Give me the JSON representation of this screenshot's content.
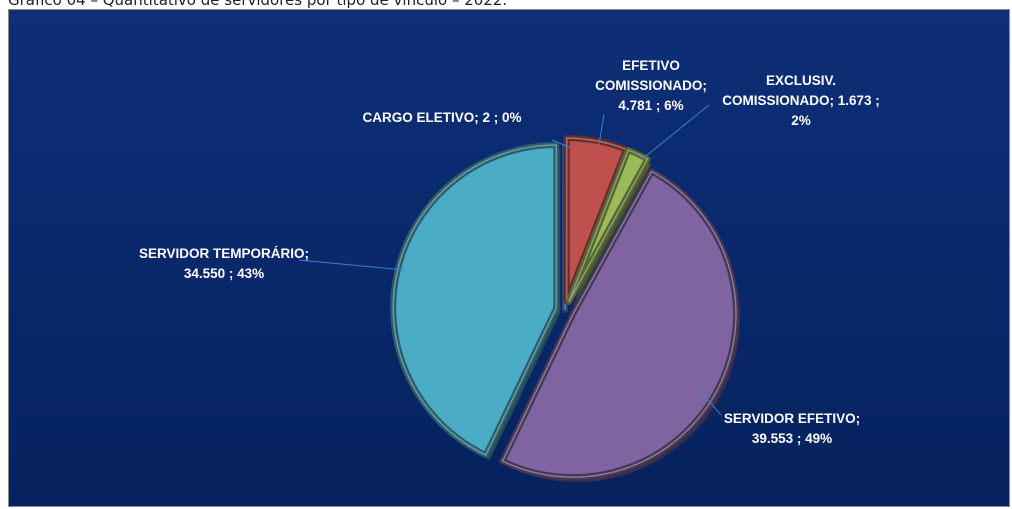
{
  "caption": "Gráfico 04 – Quantitativo de servidores por tipo de vínculo – 2022.",
  "chart_data": {
    "type": "pie",
    "title": "",
    "slices": [
      {
        "name": "CARGO ELETIVO",
        "value": 2,
        "value_label": "2",
        "percent_label": "0%",
        "color": "#4f81bd"
      },
      {
        "name": "EFETIVO COMISSIONADO",
        "value": 4781,
        "value_label": "4.781",
        "percent_label": "6%",
        "color": "#c0504d"
      },
      {
        "name": "EXCLUSIV. COMISSIONADO",
        "value": 1673,
        "value_label": "1.673",
        "percent_label": "2%",
        "color": "#9bbb59"
      },
      {
        "name": "SERVIDOR EFETIVO",
        "value": 39553,
        "value_label": "39.553",
        "percent_label": "49%",
        "color": "#8064a2"
      },
      {
        "name": "SERVIDOR TEMPORÁRIO",
        "value": 34550,
        "value_label": "34.550",
        "percent_label": "43%",
        "color": "#4bacc6"
      }
    ],
    "data_labels": [
      {
        "lines": [
          "CARGO ELETIVO;  2 ; 0%"
        ]
      },
      {
        "lines": [
          "EFETIVO",
          "COMISSIONADO;",
          "4.781 ; 6%"
        ]
      },
      {
        "lines": [
          "EXCLUSIV.",
          "COMISSIONADO;  1.673 ;",
          "2%"
        ]
      },
      {
        "lines": [
          "SERVIDOR EFETIVO;",
          "39.553 ; 49%"
        ]
      },
      {
        "lines": [
          "SERVIDOR TEMPORÁRIO;",
          "34.550 ; 43%"
        ]
      }
    ],
    "background_color": "#0a2a6b",
    "legend": "none"
  }
}
